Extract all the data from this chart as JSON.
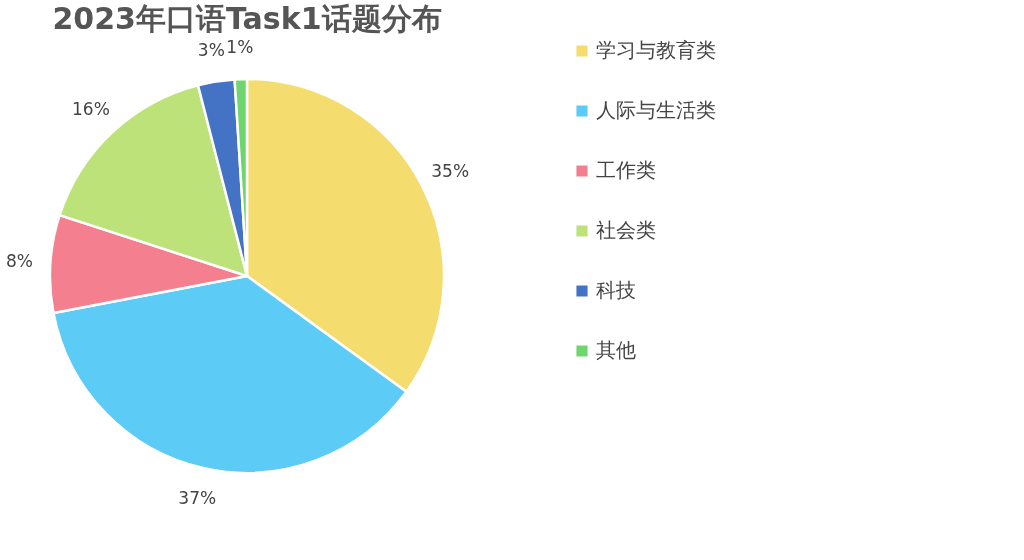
{
  "chart_data": {
    "type": "pie",
    "title": "2023年口语Task1话题分布",
    "categories": [
      "学习与教育类",
      "人际与生活类",
      "工作类",
      "社会类",
      "科技",
      "其他"
    ],
    "values": [
      35,
      37,
      8,
      16,
      3,
      1
    ],
    "value_labels": [
      "35%",
      "37%",
      "8%",
      "16%",
      "3%",
      "1%"
    ],
    "colors": [
      "#f5dc6e",
      "#5ccbf5",
      "#f47f8f",
      "#bde27a",
      "#4472c4",
      "#6fd66f"
    ],
    "legend": "right"
  }
}
